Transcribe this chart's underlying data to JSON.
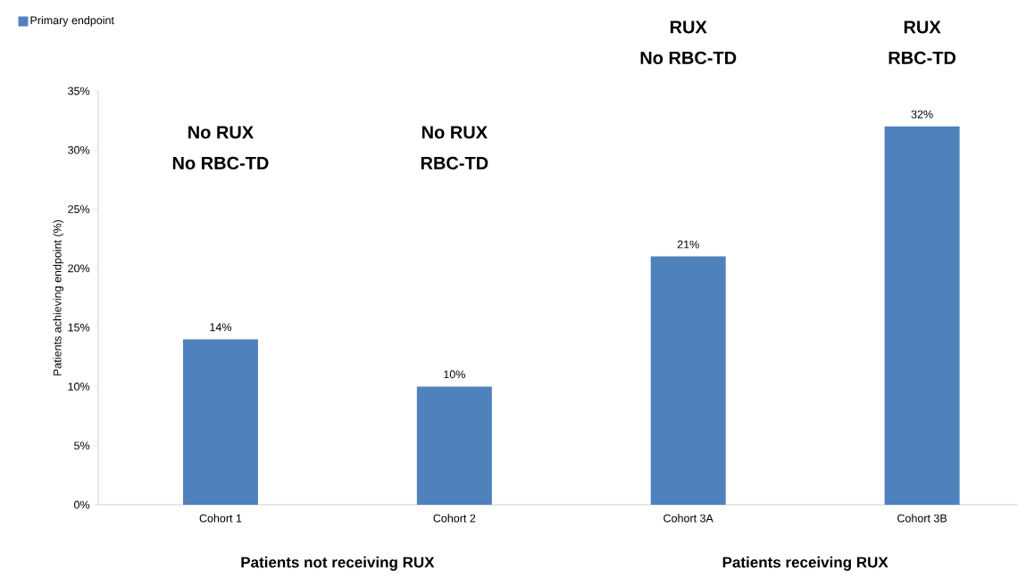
{
  "chart_data": {
    "type": "bar",
    "categories": [
      "Cohort 1",
      "Cohort 2",
      "Cohort 3A",
      "Cohort 3B"
    ],
    "series": [
      {
        "name": "Primary endpoint",
        "color": "#4f81bd",
        "values": [
          14,
          10,
          21,
          32
        ],
        "value_labels": [
          "14%",
          "10%",
          "21%",
          "32%"
        ]
      }
    ],
    "ylabel": "Patients achieving endpoint (%)",
    "ylim": [
      0,
      35
    ],
    "yticks": [
      {
        "value": 0,
        "label": "0%"
      },
      {
        "value": 5,
        "label": "5%"
      },
      {
        "value": 10,
        "label": "10%"
      },
      {
        "value": 15,
        "label": "15%"
      },
      {
        "value": 20,
        "label": "20%"
      },
      {
        "value": 25,
        "label": "25%"
      },
      {
        "value": 30,
        "label": "30%"
      },
      {
        "value": 35,
        "label": "35%"
      }
    ],
    "legend": "top left",
    "grid": false,
    "annotations": [
      "No RUX",
      "No RBC-TD",
      "No RUX",
      "RBC-TD",
      "RUX",
      "No RBC-TD",
      "RUX",
      "RBC-TD",
      "Patients not receiving RUX",
      "Patients receiving RUX"
    ]
  }
}
